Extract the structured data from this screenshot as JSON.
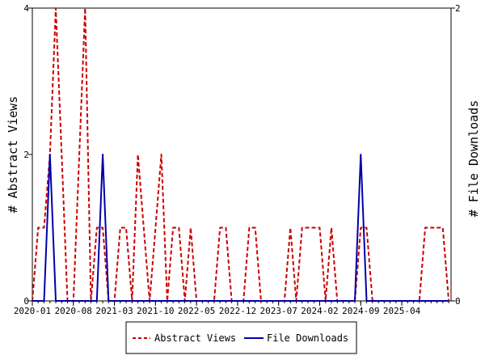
{
  "chart_data": {
    "type": "line",
    "title": "",
    "xlabel": "",
    "ylabel_left": "# Abstract Views",
    "ylabel_right": "# File Downloads",
    "ylim_left": [
      0,
      4
    ],
    "ylim_right": [
      0,
      2
    ],
    "y_ticks_left": [
      "0",
      "2",
      "4"
    ],
    "y_ticks_right": [
      "0",
      "2"
    ],
    "x_range": [
      2020.0,
      2025.95
    ],
    "x_ticks": [
      {
        "x": 2020.0,
        "label": "2020-01"
      },
      {
        "x": 2020.583,
        "label": "2020-08"
      },
      {
        "x": 2021.167,
        "label": "2021-03"
      },
      {
        "x": 2021.75,
        "label": "2021-10"
      },
      {
        "x": 2022.333,
        "label": "2022-05"
      },
      {
        "x": 2022.917,
        "label": "2022-12"
      },
      {
        "x": 2023.5,
        "label": "2023-07"
      },
      {
        "x": 2024.083,
        "label": "2024-02"
      },
      {
        "x": 2024.667,
        "label": "2024-09"
      },
      {
        "x": 2025.25,
        "label": "2025-04"
      }
    ],
    "grid": false,
    "legend_position": "bottom-center",
    "series": [
      {
        "name": "Abstract Views",
        "axis": "left",
        "style": "dashed",
        "color": "#cc0000",
        "points": [
          [
            2020.0,
            0
          ],
          [
            2020.083,
            1
          ],
          [
            2020.167,
            1
          ],
          [
            2020.25,
            2
          ],
          [
            2020.333,
            4
          ],
          [
            2020.417,
            2
          ],
          [
            2020.5,
            0
          ],
          [
            2020.583,
            0
          ],
          [
            2020.667,
            2
          ],
          [
            2020.75,
            4
          ],
          [
            2020.833,
            0
          ],
          [
            2020.917,
            1
          ],
          [
            2021.0,
            1
          ],
          [
            2021.083,
            0
          ],
          [
            2021.167,
            0
          ],
          [
            2021.25,
            1
          ],
          [
            2021.333,
            1
          ],
          [
            2021.417,
            0
          ],
          [
            2021.5,
            2
          ],
          [
            2021.583,
            1
          ],
          [
            2021.667,
            0
          ],
          [
            2021.75,
            1
          ],
          [
            2021.833,
            2
          ],
          [
            2021.917,
            0
          ],
          [
            2022.0,
            1
          ],
          [
            2022.083,
            1
          ],
          [
            2022.167,
            0
          ],
          [
            2022.25,
            1
          ],
          [
            2022.333,
            0
          ],
          [
            2022.417,
            0
          ],
          [
            2022.5,
            0
          ],
          [
            2022.583,
            0
          ],
          [
            2022.667,
            1
          ],
          [
            2022.75,
            1
          ],
          [
            2022.833,
            0
          ],
          [
            2022.917,
            0
          ],
          [
            2023.0,
            0
          ],
          [
            2023.083,
            1
          ],
          [
            2023.167,
            1
          ],
          [
            2023.25,
            0
          ],
          [
            2023.333,
            0
          ],
          [
            2023.417,
            0
          ],
          [
            2023.5,
            0
          ],
          [
            2023.583,
            0
          ],
          [
            2023.667,
            1
          ],
          [
            2023.75,
            0
          ],
          [
            2023.833,
            1
          ],
          [
            2023.917,
            1
          ],
          [
            2024.0,
            1
          ],
          [
            2024.083,
            1
          ],
          [
            2024.167,
            0
          ],
          [
            2024.25,
            1
          ],
          [
            2024.333,
            0
          ],
          [
            2024.417,
            0
          ],
          [
            2024.5,
            0
          ],
          [
            2024.583,
            0
          ],
          [
            2024.667,
            1
          ],
          [
            2024.75,
            1
          ],
          [
            2024.833,
            0
          ],
          [
            2024.917,
            0
          ],
          [
            2025.0,
            0
          ],
          [
            2025.083,
            0
          ],
          [
            2025.167,
            0
          ],
          [
            2025.25,
            0
          ],
          [
            2025.333,
            0
          ],
          [
            2025.417,
            0
          ],
          [
            2025.5,
            0
          ],
          [
            2025.583,
            1
          ],
          [
            2025.667,
            1
          ],
          [
            2025.75,
            1
          ],
          [
            2025.833,
            1
          ],
          [
            2025.917,
            0
          ]
        ]
      },
      {
        "name": "File Downloads",
        "axis": "right",
        "style": "solid",
        "color": "#0000aa",
        "points": [
          [
            2020.0,
            0
          ],
          [
            2020.083,
            0
          ],
          [
            2020.167,
            0
          ],
          [
            2020.25,
            1
          ],
          [
            2020.333,
            0
          ],
          [
            2020.417,
            0
          ],
          [
            2020.5,
            0
          ],
          [
            2020.583,
            0
          ],
          [
            2020.667,
            0
          ],
          [
            2020.75,
            0
          ],
          [
            2020.833,
            0
          ],
          [
            2020.917,
            0
          ],
          [
            2021.0,
            1
          ],
          [
            2021.083,
            0
          ],
          [
            2021.167,
            0
          ],
          [
            2024.417,
            0
          ],
          [
            2024.5,
            0
          ],
          [
            2024.583,
            0
          ],
          [
            2024.667,
            1
          ],
          [
            2024.75,
            0
          ],
          [
            2024.833,
            0
          ],
          [
            2025.917,
            0
          ]
        ]
      }
    ]
  }
}
